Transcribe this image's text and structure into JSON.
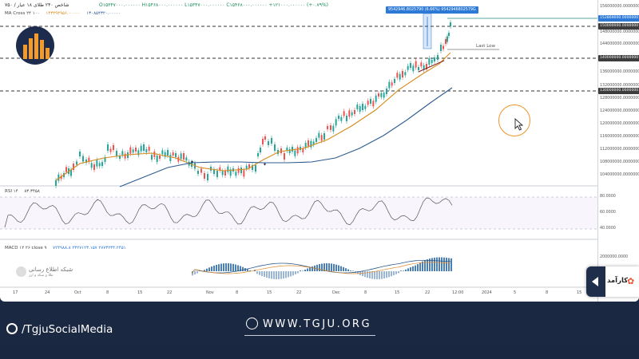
{
  "header": {
    "symbol_info": "شاخص  ۲۴۰  طلای ۱۸ عیار / ۷۵۰",
    "ohlc_values": "O۱۵۳۴۷۰۰۰.۰۰۰۰۰۰  H۱۵۴۶۸۰۰۰.۰۰۰۰۰۰  L۱۵۳۴۷۰۰۰.۰۰۰۰۰۰  C۱۵۴۶۸۰۰۰.۰۰۰۰۰۰  +۱۲۱۰۰۰.۰۰۰۰۰۰ (+۰.۷۹%)",
    "ma_label": "MA Cross ۲۴ ۱۰۰",
    "ma_fast_value": "۱۴۳۴۹۴۹۵۶.۰۰۰۰۰",
    "ma_slow_value": "۱۳۰۸۵۴۳۲۰.۰۰۰۰۰"
  },
  "annotations": {
    "range_label": "9542946.8025790 (6.66%) 9542946802579G",
    "last_low": "Last Low"
  },
  "y_axis": {
    "ticks": [
      "156000000.0000000",
      "148000000.0000000",
      "144000000.0000000",
      "140000000.0000000",
      "136000000.0000000",
      "132000000.0000000",
      "128000000.0000000",
      "124000000.0000000",
      "120000000.0000000",
      "116000000.0000000",
      "112000000.0000000",
      "108000000.0000000",
      "104000000.0000000"
    ],
    "highlights": {
      "current_price": "152869000.0000000",
      "level_150": "150000000.0000000",
      "level_140": "140000000.0000000",
      "level_130": "130000000.0000000"
    },
    "rsi_ticks": [
      "80.0000",
      "60.0000",
      "40.0000"
    ],
    "macd_ticks": [
      "2000000.0000"
    ]
  },
  "rsi": {
    "label": "RSI ۱۴",
    "value": "۸۳.۳۴۵۸"
  },
  "macd": {
    "label": "MACD ۱۲ ۲۶ close ۹",
    "values": "۷۲۴۹۸۸.۸ ۲۳۲۷۱۲۳.۱۵۷  ۲۷۷۳۲۳۴.۲۴۵۱"
  },
  "x_axis": {
    "ticks": [
      "17",
      "24",
      "Oct",
      "8",
      "15",
      "22",
      "Nov",
      "8",
      "15",
      "22",
      "Dec",
      "8",
      "15",
      "22",
      "12:00",
      "2024",
      "5",
      "8",
      "15"
    ]
  },
  "watermark": {
    "title": "شبکه اطلاع رسانی",
    "subtitle": "طلا و سکه و ارز"
  },
  "side_panel": {
    "brand": "کارآمد"
  },
  "footer": {
    "social": "/TgjuSocialMedia",
    "website": "WWW.TGJU.ORG"
  },
  "colors": {
    "ma_fast": "#d88a1a",
    "ma_slow": "#2c5b8f",
    "candle_up": "#26a69a",
    "candle_down": "#ef5350",
    "accent": "#f0922a"
  }
}
